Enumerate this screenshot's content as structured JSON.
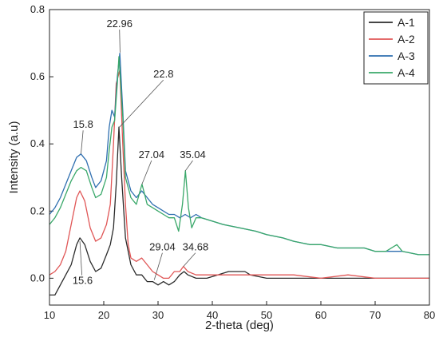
{
  "chart_data": {
    "type": "line",
    "title": "",
    "xlabel": "2-theta (deg)",
    "ylabel": "Intensity (a.u)",
    "xlim": [
      10,
      80
    ],
    "ylim": [
      -0.08,
      0.8
    ],
    "xticks": [
      10,
      20,
      30,
      40,
      50,
      60,
      70,
      80
    ],
    "yticks": [
      0.0,
      0.2,
      0.4,
      0.6,
      0.8
    ],
    "ytick_labels": [
      "0.0",
      "0.2",
      "0.4",
      "0.6",
      "0.8"
    ],
    "grid": false,
    "legend_position": "top-right",
    "series": [
      {
        "name": "A-1",
        "color": "#2b2b2b",
        "points": [
          [
            10,
            -0.05
          ],
          [
            11,
            -0.05
          ],
          [
            12,
            -0.02
          ],
          [
            13,
            0.01
          ],
          [
            14,
            0.04
          ],
          [
            15,
            0.1
          ],
          [
            15.6,
            0.12
          ],
          [
            16.5,
            0.1
          ],
          [
            17.5,
            0.05
          ],
          [
            18.5,
            0.02
          ],
          [
            19.5,
            0.03
          ],
          [
            20.5,
            0.07
          ],
          [
            21.2,
            0.1
          ],
          [
            21.8,
            0.15
          ],
          [
            22.3,
            0.28
          ],
          [
            22.8,
            0.45
          ],
          [
            23.3,
            0.3
          ],
          [
            24,
            0.12
          ],
          [
            25,
            0.04
          ],
          [
            26,
            0.01
          ],
          [
            27,
            0.01
          ],
          [
            28,
            -0.01
          ],
          [
            29,
            -0.01
          ],
          [
            30,
            -0.02
          ],
          [
            31,
            -0.01
          ],
          [
            32,
            -0.02
          ],
          [
            33,
            -0.01
          ],
          [
            34,
            0.01
          ],
          [
            34.8,
            0.02
          ],
          [
            35.5,
            0.01
          ],
          [
            37,
            0.0
          ],
          [
            39,
            0.0
          ],
          [
            41,
            0.01
          ],
          [
            43,
            0.02
          ],
          [
            45,
            0.02
          ],
          [
            46,
            0.02
          ],
          [
            47,
            0.01
          ],
          [
            50,
            0.0
          ],
          [
            55,
            0.0
          ],
          [
            60,
            0.0
          ],
          [
            65,
            0.0
          ],
          [
            70,
            0.0
          ],
          [
            75,
            0.0
          ],
          [
            80,
            0.0
          ]
        ]
      },
      {
        "name": "A-2",
        "color": "#e05656",
        "points": [
          [
            10,
            0.01
          ],
          [
            11,
            0.02
          ],
          [
            12,
            0.04
          ],
          [
            13,
            0.08
          ],
          [
            14,
            0.16
          ],
          [
            15,
            0.24
          ],
          [
            15.6,
            0.26
          ],
          [
            16.5,
            0.23
          ],
          [
            17.5,
            0.15
          ],
          [
            18.5,
            0.11
          ],
          [
            19.5,
            0.12
          ],
          [
            20.5,
            0.16
          ],
          [
            21.2,
            0.22
          ],
          [
            21.8,
            0.4
          ],
          [
            22.3,
            0.58
          ],
          [
            22.96,
            0.62
          ],
          [
            23.5,
            0.4
          ],
          [
            24,
            0.22
          ],
          [
            24.5,
            0.1
          ],
          [
            25,
            0.06
          ],
          [
            26,
            0.05
          ],
          [
            27,
            0.06
          ],
          [
            28,
            0.04
          ],
          [
            29,
            0.02
          ],
          [
            30,
            0.01
          ],
          [
            31,
            0.0
          ],
          [
            32,
            0.0
          ],
          [
            33,
            0.02
          ],
          [
            34,
            0.02
          ],
          [
            34.68,
            0.035
          ],
          [
            35.5,
            0.02
          ],
          [
            37,
            0.01
          ],
          [
            39,
            0.01
          ],
          [
            42,
            0.01
          ],
          [
            45,
            0.01
          ],
          [
            50,
            0.01
          ],
          [
            55,
            0.01
          ],
          [
            60,
            0.0
          ],
          [
            65,
            0.01
          ],
          [
            70,
            0.0
          ],
          [
            75,
            0.0
          ],
          [
            80,
            0.0
          ]
        ]
      },
      {
        "name": "A-3",
        "color": "#2f6fb0",
        "points": [
          [
            10,
            0.19
          ],
          [
            11,
            0.21
          ],
          [
            12,
            0.24
          ],
          [
            13,
            0.28
          ],
          [
            14,
            0.32
          ],
          [
            15,
            0.36
          ],
          [
            15.8,
            0.37
          ],
          [
            16.8,
            0.35
          ],
          [
            17.8,
            0.3
          ],
          [
            18.5,
            0.27
          ],
          [
            19.5,
            0.29
          ],
          [
            20.5,
            0.35
          ],
          [
            21,
            0.45
          ],
          [
            21.5,
            0.5
          ],
          [
            22,
            0.48
          ],
          [
            22.5,
            0.6
          ],
          [
            22.96,
            0.67
          ],
          [
            23.5,
            0.5
          ],
          [
            24,
            0.32
          ],
          [
            25,
            0.26
          ],
          [
            26,
            0.24
          ],
          [
            27,
            0.26
          ],
          [
            28,
            0.24
          ],
          [
            29,
            0.22
          ],
          [
            30,
            0.21
          ],
          [
            31,
            0.2
          ],
          [
            32,
            0.19
          ],
          [
            33,
            0.19
          ],
          [
            34,
            0.18
          ],
          [
            35,
            0.19
          ],
          [
            36,
            0.18
          ],
          [
            37,
            0.19
          ],
          [
            38,
            0.18
          ],
          [
            40,
            0.17
          ],
          [
            42,
            0.16
          ],
          [
            45,
            0.15
          ],
          [
            48,
            0.14
          ],
          [
            50,
            0.13
          ],
          [
            53,
            0.12
          ],
          [
            55,
            0.11
          ],
          [
            58,
            0.1
          ],
          [
            60,
            0.1
          ],
          [
            63,
            0.09
          ],
          [
            65,
            0.09
          ],
          [
            68,
            0.09
          ],
          [
            70,
            0.08
          ],
          [
            73,
            0.08
          ],
          [
            75,
            0.08
          ],
          [
            78,
            0.07
          ],
          [
            80,
            0.07
          ]
        ]
      },
      {
        "name": "A-4",
        "color": "#3aa86a",
        "points": [
          [
            10,
            0.16
          ],
          [
            11,
            0.18
          ],
          [
            12,
            0.21
          ],
          [
            13,
            0.25
          ],
          [
            14,
            0.29
          ],
          [
            15,
            0.32
          ],
          [
            15.8,
            0.33
          ],
          [
            16.8,
            0.32
          ],
          [
            17.8,
            0.27
          ],
          [
            18.5,
            0.24
          ],
          [
            19.5,
            0.25
          ],
          [
            20.5,
            0.3
          ],
          [
            21,
            0.38
          ],
          [
            21.5,
            0.45
          ],
          [
            22,
            0.47
          ],
          [
            22.5,
            0.58
          ],
          [
            22.8,
            0.66
          ],
          [
            23.5,
            0.48
          ],
          [
            24,
            0.3
          ],
          [
            25,
            0.24
          ],
          [
            26,
            0.22
          ],
          [
            27.04,
            0.28
          ],
          [
            28,
            0.22
          ],
          [
            29,
            0.21
          ],
          [
            30,
            0.2
          ],
          [
            31,
            0.19
          ],
          [
            32,
            0.18
          ],
          [
            33,
            0.18
          ],
          [
            33.8,
            0.14
          ],
          [
            34.5,
            0.22
          ],
          [
            35.04,
            0.32
          ],
          [
            35.6,
            0.21
          ],
          [
            36.2,
            0.15
          ],
          [
            37,
            0.18
          ],
          [
            38,
            0.18
          ],
          [
            40,
            0.17
          ],
          [
            42,
            0.16
          ],
          [
            45,
            0.15
          ],
          [
            48,
            0.14
          ],
          [
            50,
            0.13
          ],
          [
            53,
            0.12
          ],
          [
            55,
            0.11
          ],
          [
            58,
            0.1
          ],
          [
            60,
            0.1
          ],
          [
            63,
            0.09
          ],
          [
            65,
            0.09
          ],
          [
            68,
            0.09
          ],
          [
            70,
            0.08
          ],
          [
            72,
            0.08
          ],
          [
            74,
            0.1
          ],
          [
            75,
            0.08
          ],
          [
            78,
            0.07
          ],
          [
            80,
            0.07
          ]
        ]
      }
    ],
    "annotations": [
      {
        "text": "22.96",
        "x": 23.0,
        "y": 0.672,
        "label_x": 22.9,
        "label_y": 0.75
      },
      {
        "text": "22.8",
        "x": 22.9,
        "y": 0.45,
        "label_x": 31.0,
        "label_y": 0.6
      },
      {
        "text": "15.8",
        "x": 15.8,
        "y": 0.37,
        "label_x": 16.2,
        "label_y": 0.45
      },
      {
        "text": "27.04",
        "x": 27.04,
        "y": 0.28,
        "label_x": 28.8,
        "label_y": 0.36
      },
      {
        "text": "35.04",
        "x": 35.04,
        "y": 0.32,
        "label_x": 36.4,
        "label_y": 0.36
      },
      {
        "text": "29.04",
        "x": 29.3,
        "y": -0.005,
        "label_x": 30.8,
        "label_y": 0.085
      },
      {
        "text": "34.68",
        "x": 34.68,
        "y": 0.035,
        "label_x": 36.9,
        "label_y": 0.085
      },
      {
        "text": "15.6",
        "x": 15.6,
        "y": 0.11,
        "label_x": 16.1,
        "label_y": -0.015
      }
    ]
  }
}
